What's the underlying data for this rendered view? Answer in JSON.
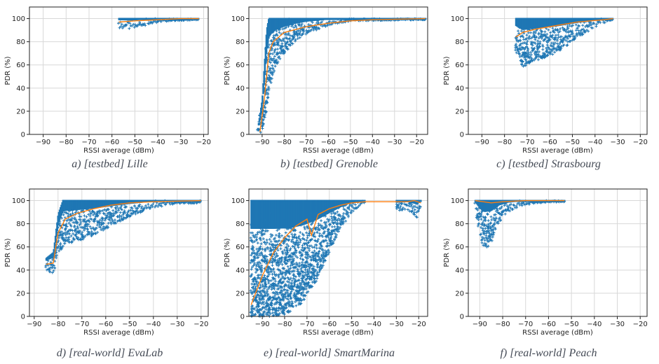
{
  "colors": {
    "scatter": "#1f77b4",
    "median": "#ff7f0e",
    "grid": "#d8d8d8",
    "axis": "#222222"
  },
  "chart_data": [
    {
      "type": "scatter",
      "caption": "a) [testbed] Lille",
      "xlabel": "RSSI average (dBm)",
      "ylabel": "PDR (%)",
      "xlim": [
        -96,
        -18
      ],
      "ylim": [
        0,
        110
      ],
      "xticks": [
        -90,
        -80,
        -70,
        -60,
        -50,
        -40,
        -30,
        -20
      ],
      "yticks": [
        0,
        20,
        40,
        60,
        80,
        100
      ],
      "grid": true,
      "cloud": {
        "x": [
          -57,
          -22
        ],
        "upper": [
          [
            -57,
            100
          ],
          [
            -22,
            100
          ]
        ],
        "lower": [
          [
            -57,
            92
          ],
          [
            -52,
            91
          ],
          [
            -47,
            93
          ],
          [
            -42,
            96
          ],
          [
            -35,
            98
          ],
          [
            -22,
            99
          ]
        ]
      },
      "median": [
        [
          -57,
          97
        ],
        [
          -50,
          98
        ],
        [
          -40,
          99
        ],
        [
          -30,
          100
        ],
        [
          -22,
          100
        ]
      ]
    },
    {
      "type": "scatter",
      "caption": "b) [testbed] Grenoble",
      "xlabel": "RSSI average (dBm)",
      "ylabel": "PDR (%)",
      "xlim": [
        -96,
        -15
      ],
      "ylim": [
        0,
        110
      ],
      "xticks": [
        -90,
        -80,
        -70,
        -60,
        -50,
        -40,
        -30,
        -20
      ],
      "yticks": [
        0,
        20,
        40,
        60,
        80,
        100
      ],
      "grid": true,
      "cloud": {
        "x": [
          -92,
          -16
        ],
        "upper": [
          [
            -92,
            5
          ],
          [
            -90,
            30
          ],
          [
            -89,
            60
          ],
          [
            -88,
            90
          ],
          [
            -87,
            100
          ],
          [
            -16,
            100
          ]
        ],
        "lower": [
          [
            -92,
            0
          ],
          [
            -90,
            2
          ],
          [
            -88,
            20
          ],
          [
            -86,
            45
          ],
          [
            -84,
            58
          ],
          [
            -80,
            70
          ],
          [
            -75,
            80
          ],
          [
            -70,
            87
          ],
          [
            -60,
            94
          ],
          [
            -50,
            98
          ],
          [
            -16,
            99
          ]
        ]
      },
      "median": [
        [
          -91,
          2
        ],
        [
          -89,
          30
        ],
        [
          -87,
          70
        ],
        [
          -85,
          80
        ],
        [
          -80,
          88
        ],
        [
          -70,
          93
        ],
        [
          -60,
          96
        ],
        [
          -50,
          98
        ],
        [
          -40,
          99
        ],
        [
          -16,
          100
        ]
      ]
    },
    {
      "type": "scatter",
      "caption": "c) [testbed] Strasbourg",
      "xlabel": "RSSI average (dBm)",
      "ylabel": "PDR (%)",
      "xlim": [
        -96,
        -17
      ],
      "ylim": [
        0,
        110
      ],
      "xticks": [
        -90,
        -80,
        -70,
        -60,
        -50,
        -40,
        -30,
        -20
      ],
      "yticks": [
        0,
        20,
        40,
        60,
        80,
        100
      ],
      "grid": true,
      "cloud": {
        "x": [
          -75,
          -32
        ],
        "upper": [
          [
            -75,
            100
          ],
          [
            -32,
            100
          ]
        ],
        "lower": [
          [
            -75,
            72
          ],
          [
            -72,
            58
          ],
          [
            -68,
            62
          ],
          [
            -62,
            66
          ],
          [
            -56,
            72
          ],
          [
            -50,
            80
          ],
          [
            -44,
            88
          ],
          [
            -38,
            95
          ],
          [
            -32,
            99
          ]
        ]
      },
      "median": [
        [
          -75,
          84
        ],
        [
          -72,
          88
        ],
        [
          -66,
          91
        ],
        [
          -60,
          93
        ],
        [
          -54,
          95
        ],
        [
          -48,
          97
        ],
        [
          -42,
          98
        ],
        [
          -36,
          99
        ],
        [
          -32,
          100
        ]
      ]
    },
    {
      "type": "scatter",
      "caption": "d) [real-world] EvaLab",
      "xlabel": "RSSI average (dBm)",
      "ylabel": "PDR (%)",
      "xlim": [
        -92,
        -17
      ],
      "ylim": [
        0,
        110
      ],
      "xticks": [
        -90,
        -80,
        -70,
        -60,
        -50,
        -40,
        -30,
        -20
      ],
      "yticks": [
        0,
        20,
        40,
        60,
        80,
        100
      ],
      "grid": true,
      "cloud": {
        "x": [
          -85,
          -20
        ],
        "upper": [
          [
            -85,
            50
          ],
          [
            -82,
            55
          ],
          [
            -80,
            88
          ],
          [
            -78,
            100
          ],
          [
            -20,
            100
          ]
        ],
        "lower": [
          [
            -85,
            40
          ],
          [
            -82,
            36
          ],
          [
            -80,
            55
          ],
          [
            -77,
            62
          ],
          [
            -72,
            65
          ],
          [
            -65,
            70
          ],
          [
            -58,
            78
          ],
          [
            -50,
            86
          ],
          [
            -40,
            94
          ],
          [
            -30,
            97
          ],
          [
            -20,
            98
          ]
        ]
      },
      "median": [
        [
          -85,
          45
        ],
        [
          -82,
          46
        ],
        [
          -80,
          72
        ],
        [
          -77,
          84
        ],
        [
          -72,
          89
        ],
        [
          -65,
          93
        ],
        [
          -58,
          96
        ],
        [
          -50,
          98
        ],
        [
          -40,
          99
        ],
        [
          -20,
          100
        ]
      ]
    },
    {
      "type": "scatter",
      "caption": "e) [real-world] SmartMarina",
      "xlabel": "RSSI average (dBm)",
      "ylabel": "PDR (%)",
      "xlim": [
        -96,
        -16
      ],
      "ylim": [
        0,
        110
      ],
      "xticks": [
        -90,
        -80,
        -70,
        -60,
        -50,
        -40,
        -30,
        -20
      ],
      "yticks": [
        0,
        20,
        40,
        60,
        80,
        100
      ],
      "grid": true,
      "cloud": {
        "x": [
          -95,
          -44
        ],
        "upper": [
          [
            -95,
            100
          ],
          [
            -44,
            100
          ]
        ],
        "lower": [
          [
            -95,
            0
          ],
          [
            -85,
            0
          ],
          [
            -78,
            2
          ],
          [
            -72,
            12
          ],
          [
            -66,
            30
          ],
          [
            -60,
            55
          ],
          [
            -55,
            75
          ],
          [
            -50,
            90
          ],
          [
            -44,
            98
          ]
        ]
      },
      "cloud2": {
        "x": [
          -30,
          -19
        ],
        "upper": [
          [
            -30,
            100
          ],
          [
            -19,
            100
          ]
        ],
        "lower": [
          [
            -30,
            90
          ],
          [
            -25,
            92
          ],
          [
            -21,
            85
          ],
          [
            -19,
            95
          ]
        ]
      },
      "median": [
        [
          -95,
          10
        ],
        [
          -90,
          35
        ],
        [
          -85,
          55
        ],
        [
          -80,
          68
        ],
        [
          -75,
          78
        ],
        [
          -70,
          84
        ],
        [
          -68,
          70
        ],
        [
          -65,
          88
        ],
        [
          -60,
          93
        ],
        [
          -55,
          96
        ],
        [
          -50,
          98
        ],
        [
          -44,
          99
        ],
        [
          -25,
          99
        ],
        [
          -22,
          100
        ],
        [
          -19,
          98
        ]
      ]
    },
    {
      "type": "scatter",
      "caption": "f) [real-world] Peach",
      "xlabel": "RSSI average (dBm)",
      "ylabel": "PDR (%)",
      "xlim": [
        -95,
        -17
      ],
      "ylim": [
        0,
        110
      ],
      "xticks": [
        -90,
        -80,
        -70,
        -60,
        -50,
        -40,
        -30,
        -20
      ],
      "yticks": [
        0,
        20,
        40,
        60,
        80,
        100
      ],
      "grid": true,
      "cloud": {
        "x": [
          -92,
          -53
        ],
        "upper": [
          [
            -92,
            100
          ],
          [
            -53,
            100
          ]
        ],
        "lower": [
          [
            -92,
            92
          ],
          [
            -90,
            70
          ],
          [
            -88,
            58
          ],
          [
            -85,
            62
          ],
          [
            -82,
            80
          ],
          [
            -78,
            90
          ],
          [
            -72,
            95
          ],
          [
            -65,
            98
          ],
          [
            -53,
            99
          ]
        ]
      },
      "median": [
        [
          -92,
          100
        ],
        [
          -85,
          98
        ],
        [
          -80,
          99
        ],
        [
          -70,
          100
        ],
        [
          -53,
          100
        ]
      ]
    }
  ]
}
